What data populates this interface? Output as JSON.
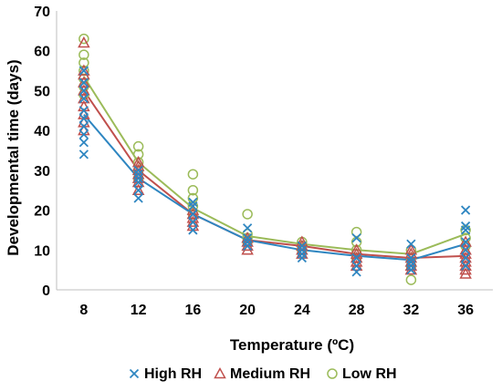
{
  "chart_data": {
    "type": "scatter",
    "title": "",
    "xlabel": "Temperature (ºC)",
    "ylabel": "Developmental time (days)",
    "x": [
      8,
      12,
      16,
      20,
      24,
      28,
      32,
      36
    ],
    "xlim": [
      6,
      38
    ],
    "ylim": [
      0,
      70
    ],
    "yticks": [
      0,
      10,
      20,
      30,
      40,
      50,
      60,
      70
    ],
    "grid": false,
    "legend_position": "bottom",
    "series": [
      {
        "name": "High RH",
        "marker": "x",
        "color": "#2E86C1",
        "mean": [
          44,
          28,
          19,
          12.5,
          10,
          8.5,
          7.5,
          11.5
        ],
        "points": [
          [
            8,
            34
          ],
          [
            8,
            37
          ],
          [
            8,
            39
          ],
          [
            8,
            41
          ],
          [
            8,
            43
          ],
          [
            8,
            45
          ],
          [
            8,
            48
          ],
          [
            8,
            50
          ],
          [
            8,
            52
          ],
          [
            8,
            55
          ],
          [
            12,
            23
          ],
          [
            12,
            25
          ],
          [
            12,
            27
          ],
          [
            12,
            28
          ],
          [
            12,
            29
          ],
          [
            12,
            30
          ],
          [
            16,
            15
          ],
          [
            16,
            17
          ],
          [
            16,
            19
          ],
          [
            16,
            21
          ],
          [
            16,
            22
          ],
          [
            20,
            11
          ],
          [
            20,
            12
          ],
          [
            20,
            13
          ],
          [
            20,
            15.5
          ],
          [
            24,
            8
          ],
          [
            24,
            9
          ],
          [
            24,
            10
          ],
          [
            24,
            11
          ],
          [
            28,
            4.5
          ],
          [
            28,
            6
          ],
          [
            28,
            8
          ],
          [
            28,
            13
          ],
          [
            32,
            5
          ],
          [
            32,
            6
          ],
          [
            32,
            7
          ],
          [
            32,
            8
          ],
          [
            32,
            11.5
          ],
          [
            36,
            6
          ],
          [
            36,
            8
          ],
          [
            36,
            10
          ],
          [
            36,
            12
          ],
          [
            36,
            15
          ],
          [
            36,
            16
          ],
          [
            36,
            20
          ]
        ]
      },
      {
        "name": "Medium RH",
        "marker": "triangle",
        "color": "#C0504D",
        "mean": [
          50,
          30,
          19,
          12.5,
          11,
          9,
          8,
          8.5
        ],
        "points": [
          [
            8,
            40
          ],
          [
            8,
            42
          ],
          [
            8,
            44
          ],
          [
            8,
            46
          ],
          [
            8,
            48
          ],
          [
            8,
            50
          ],
          [
            8,
            52
          ],
          [
            8,
            54
          ],
          [
            8,
            55
          ],
          [
            8,
            62
          ],
          [
            12,
            25
          ],
          [
            12,
            27
          ],
          [
            12,
            28
          ],
          [
            12,
            29
          ],
          [
            12,
            30
          ],
          [
            12,
            31
          ],
          [
            12,
            32
          ],
          [
            16,
            16
          ],
          [
            16,
            17
          ],
          [
            16,
            18
          ],
          [
            16,
            19
          ],
          [
            16,
            20
          ],
          [
            20,
            10
          ],
          [
            20,
            11
          ],
          [
            20,
            12
          ],
          [
            20,
            13
          ],
          [
            24,
            9
          ],
          [
            24,
            10
          ],
          [
            24,
            11
          ],
          [
            24,
            12
          ],
          [
            28,
            6
          ],
          [
            28,
            7
          ],
          [
            28,
            8
          ],
          [
            28,
            9
          ],
          [
            28,
            10
          ],
          [
            32,
            5
          ],
          [
            32,
            6
          ],
          [
            32,
            7
          ],
          [
            32,
            8
          ],
          [
            32,
            9
          ],
          [
            32,
            10
          ],
          [
            36,
            4
          ],
          [
            36,
            5
          ],
          [
            36,
            6
          ],
          [
            36,
            7
          ],
          [
            36,
            8
          ],
          [
            36,
            9
          ],
          [
            36,
            10
          ],
          [
            36,
            12
          ]
        ]
      },
      {
        "name": "Low RH",
        "marker": "circle",
        "color": "#9BBB59",
        "mean": [
          53.5,
          32,
          20.5,
          13.5,
          11.5,
          10,
          9,
          14
        ],
        "points": [
          [
            8,
            49
          ],
          [
            8,
            51
          ],
          [
            8,
            53
          ],
          [
            8,
            55
          ],
          [
            8,
            57
          ],
          [
            8,
            59
          ],
          [
            8,
            63
          ],
          [
            12,
            28
          ],
          [
            12,
            30
          ],
          [
            12,
            32
          ],
          [
            12,
            34
          ],
          [
            12,
            36
          ],
          [
            16,
            19
          ],
          [
            16,
            21
          ],
          [
            16,
            23
          ],
          [
            16,
            25
          ],
          [
            16,
            29
          ],
          [
            20,
            12
          ],
          [
            20,
            13
          ],
          [
            20,
            14
          ],
          [
            20,
            19
          ],
          [
            24,
            10
          ],
          [
            24,
            11
          ],
          [
            24,
            12
          ],
          [
            28,
            8
          ],
          [
            28,
            10
          ],
          [
            28,
            12
          ],
          [
            28,
            14.5
          ],
          [
            32,
            2.5
          ],
          [
            32,
            6
          ],
          [
            32,
            8
          ],
          [
            32,
            10
          ],
          [
            36,
            11
          ],
          [
            36,
            13
          ],
          [
            36,
            15
          ]
        ]
      }
    ]
  }
}
